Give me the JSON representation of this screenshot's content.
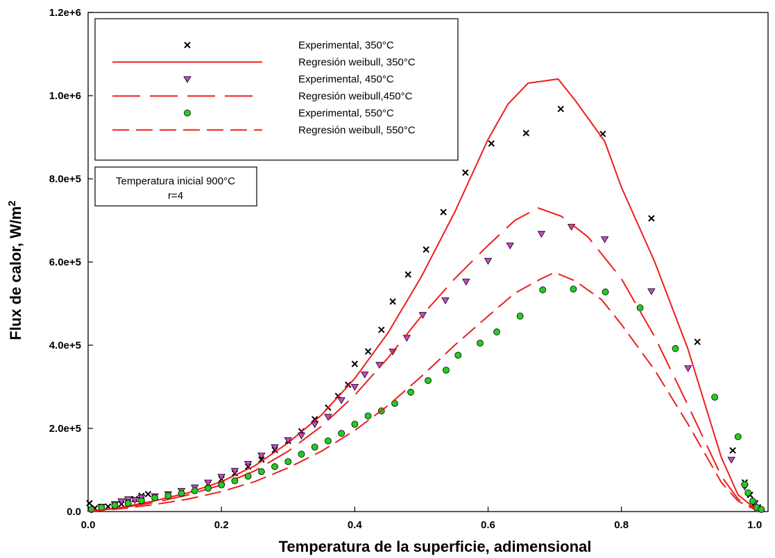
{
  "chart_data": {
    "type": "scatter",
    "xlabel": "Temperatura de la superficie, adimensional",
    "ylabel_main": "Flux de calor, W/m",
    "ylabel_sup": "2",
    "xlim": [
      0,
      1.02
    ],
    "ylim": [
      0,
      1200000
    ],
    "xticks": [
      "0.0",
      "0.2",
      "0.4",
      "0.6",
      "0.8",
      "1.0"
    ],
    "xtick_values": [
      0,
      0.2,
      0.4,
      0.6,
      0.8,
      1.0
    ],
    "yticks": [
      "0.0",
      "2.0e+5",
      "4.0e+5",
      "6.0e+5",
      "8.0e+5",
      "1.0e+6",
      "1.2e+6"
    ],
    "ytick_values": [
      0,
      200000,
      400000,
      600000,
      800000,
      1000000,
      1200000
    ],
    "grid": false,
    "legend_position": "top-left",
    "annotation": [
      "Temperatura inicial 900°C",
      "r=4"
    ],
    "series": [
      {
        "name": "Experimental, 350°C",
        "kind": "scatter",
        "marker": "x",
        "color": "#000000",
        "points": [
          [
            0.002,
            20000
          ],
          [
            0.01,
            8000
          ],
          [
            0.02,
            10000
          ],
          [
            0.03,
            12000
          ],
          [
            0.04,
            15000
          ],
          [
            0.05,
            18000
          ],
          [
            0.06,
            22000
          ],
          [
            0.07,
            30000
          ],
          [
            0.08,
            38000
          ],
          [
            0.09,
            42000
          ],
          [
            0.1,
            35000
          ],
          [
            0.12,
            40000
          ],
          [
            0.14,
            48000
          ],
          [
            0.16,
            56000
          ],
          [
            0.18,
            66000
          ],
          [
            0.2,
            78000
          ],
          [
            0.22,
            92000
          ],
          [
            0.24,
            108000
          ],
          [
            0.26,
            125000
          ],
          [
            0.28,
            148000
          ],
          [
            0.3,
            170000
          ],
          [
            0.32,
            193000
          ],
          [
            0.34,
            222000
          ],
          [
            0.36,
            250000
          ],
          [
            0.375,
            278000
          ],
          [
            0.39,
            305000
          ],
          [
            0.4,
            355000
          ],
          [
            0.42,
            385000
          ],
          [
            0.44,
            437000
          ],
          [
            0.457,
            505000
          ],
          [
            0.48,
            570000
          ],
          [
            0.507,
            630000
          ],
          [
            0.533,
            720000
          ],
          [
            0.566,
            815000
          ],
          [
            0.605,
            885000
          ],
          [
            0.657,
            910000
          ],
          [
            0.709,
            968000
          ],
          [
            0.772,
            908000
          ],
          [
            0.845,
            705000
          ],
          [
            0.914,
            408000
          ],
          [
            0.967,
            147000
          ],
          [
            0.985,
            70000
          ],
          [
            0.993,
            40000
          ],
          [
            1.0,
            20000
          ],
          [
            1.005,
            10000
          ]
        ]
      },
      {
        "name": "Regresión weibull, 350°C",
        "kind": "line",
        "dash": "solid",
        "color": "#ee1c1c",
        "points": [
          [
            0,
            0
          ],
          [
            0.05,
            10000
          ],
          [
            0.1,
            26000
          ],
          [
            0.15,
            45000
          ],
          [
            0.2,
            72000
          ],
          [
            0.25,
            110000
          ],
          [
            0.3,
            165000
          ],
          [
            0.35,
            232000
          ],
          [
            0.4,
            320000
          ],
          [
            0.45,
            430000
          ],
          [
            0.5,
            565000
          ],
          [
            0.55,
            720000
          ],
          [
            0.6,
            895000
          ],
          [
            0.63,
            980000
          ],
          [
            0.66,
            1030000
          ],
          [
            0.705,
            1040000
          ],
          [
            0.73,
            990000
          ],
          [
            0.775,
            890000
          ],
          [
            0.8,
            780000
          ],
          [
            0.85,
            600000
          ],
          [
            0.9,
            390000
          ],
          [
            0.95,
            130000
          ],
          [
            0.975,
            40000
          ],
          [
            1.0,
            8000
          ]
        ]
      },
      {
        "name": "Experimental, 450°C",
        "kind": "scatter",
        "marker": "triangle-down",
        "color": "#cc44cc",
        "points": [
          [
            0.005,
            5000
          ],
          [
            0.02,
            12000
          ],
          [
            0.04,
            18000
          ],
          [
            0.05,
            25000
          ],
          [
            0.06,
            30000
          ],
          [
            0.07,
            28000
          ],
          [
            0.08,
            34000
          ],
          [
            0.1,
            37000
          ],
          [
            0.12,
            42000
          ],
          [
            0.14,
            50000
          ],
          [
            0.16,
            58000
          ],
          [
            0.18,
            70000
          ],
          [
            0.2,
            84000
          ],
          [
            0.22,
            98000
          ],
          [
            0.24,
            115000
          ],
          [
            0.26,
            135000
          ],
          [
            0.28,
            155000
          ],
          [
            0.3,
            172000
          ],
          [
            0.32,
            183000
          ],
          [
            0.34,
            210000
          ],
          [
            0.36,
            228000
          ],
          [
            0.38,
            268000
          ],
          [
            0.4,
            300000
          ],
          [
            0.415,
            330000
          ],
          [
            0.437,
            353000
          ],
          [
            0.457,
            385000
          ],
          [
            0.478,
            418000
          ],
          [
            0.502,
            473000
          ],
          [
            0.536,
            508000
          ],
          [
            0.567,
            553000
          ],
          [
            0.6,
            603000
          ],
          [
            0.633,
            640000
          ],
          [
            0.68,
            668000
          ],
          [
            0.725,
            685000
          ],
          [
            0.775,
            655000
          ],
          [
            0.845,
            530000
          ],
          [
            0.9,
            345000
          ],
          [
            0.965,
            125000
          ],
          [
            0.985,
            60000
          ],
          [
            1.0,
            20000
          ]
        ]
      },
      {
        "name": "Regresión weibull,450°C",
        "kind": "line",
        "dash": "long",
        "color": "#ee1c1c",
        "points": [
          [
            0,
            0
          ],
          [
            0.05,
            9000
          ],
          [
            0.1,
            22000
          ],
          [
            0.15,
            40000
          ],
          [
            0.2,
            64000
          ],
          [
            0.25,
            98000
          ],
          [
            0.3,
            145000
          ],
          [
            0.35,
            205000
          ],
          [
            0.4,
            280000
          ],
          [
            0.45,
            370000
          ],
          [
            0.5,
            470000
          ],
          [
            0.55,
            560000
          ],
          [
            0.6,
            640000
          ],
          [
            0.64,
            700000
          ],
          [
            0.675,
            730000
          ],
          [
            0.71,
            710000
          ],
          [
            0.75,
            660000
          ],
          [
            0.8,
            560000
          ],
          [
            0.85,
            420000
          ],
          [
            0.9,
            255000
          ],
          [
            0.95,
            85000
          ],
          [
            0.975,
            30000
          ],
          [
            1.0,
            6000
          ]
        ]
      },
      {
        "name": "Experimental, 550°C",
        "kind": "scatter",
        "marker": "circle",
        "color": "#22cc22",
        "points": [
          [
            0.005,
            5000
          ],
          [
            0.02,
            10000
          ],
          [
            0.04,
            15000
          ],
          [
            0.06,
            20000
          ],
          [
            0.08,
            26000
          ],
          [
            0.1,
            33000
          ],
          [
            0.12,
            38000
          ],
          [
            0.14,
            44000
          ],
          [
            0.16,
            50000
          ],
          [
            0.18,
            56000
          ],
          [
            0.2,
            64000
          ],
          [
            0.22,
            74000
          ],
          [
            0.24,
            85000
          ],
          [
            0.26,
            96000
          ],
          [
            0.28,
            108000
          ],
          [
            0.3,
            120000
          ],
          [
            0.32,
            138000
          ],
          [
            0.34,
            155000
          ],
          [
            0.36,
            170000
          ],
          [
            0.38,
            188000
          ],
          [
            0.4,
            210000
          ],
          [
            0.42,
            230000
          ],
          [
            0.44,
            242000
          ],
          [
            0.46,
            260000
          ],
          [
            0.484,
            287000
          ],
          [
            0.51,
            315000
          ],
          [
            0.537,
            340000
          ],
          [
            0.555,
            376000
          ],
          [
            0.588,
            405000
          ],
          [
            0.613,
            432000
          ],
          [
            0.648,
            470000
          ],
          [
            0.682,
            533000
          ],
          [
            0.728,
            535000
          ],
          [
            0.776,
            528000
          ],
          [
            0.828,
            490000
          ],
          [
            0.881,
            392000
          ],
          [
            0.94,
            275000
          ],
          [
            0.975,
            180000
          ],
          [
            0.985,
            65000
          ],
          [
            0.99,
            45000
          ],
          [
            0.997,
            25000
          ],
          [
            1.003,
            10000
          ],
          [
            1.01,
            5000
          ]
        ]
      },
      {
        "name": "Regresión weibull, 550°C",
        "kind": "line",
        "dash": "medium",
        "color": "#ee1c1c",
        "points": [
          [
            0,
            0
          ],
          [
            0.05,
            7000
          ],
          [
            0.1,
            17000
          ],
          [
            0.15,
            30000
          ],
          [
            0.2,
            48000
          ],
          [
            0.25,
            72000
          ],
          [
            0.3,
            105000
          ],
          [
            0.35,
            145000
          ],
          [
            0.4,
            195000
          ],
          [
            0.45,
            255000
          ],
          [
            0.5,
            325000
          ],
          [
            0.55,
            400000
          ],
          [
            0.6,
            470000
          ],
          [
            0.64,
            525000
          ],
          [
            0.68,
            560000
          ],
          [
            0.7,
            575000
          ],
          [
            0.73,
            555000
          ],
          [
            0.77,
            510000
          ],
          [
            0.8,
            450000
          ],
          [
            0.85,
            340000
          ],
          [
            0.9,
            210000
          ],
          [
            0.95,
            70000
          ],
          [
            0.975,
            25000
          ],
          [
            1.0,
            5000
          ]
        ]
      }
    ]
  }
}
